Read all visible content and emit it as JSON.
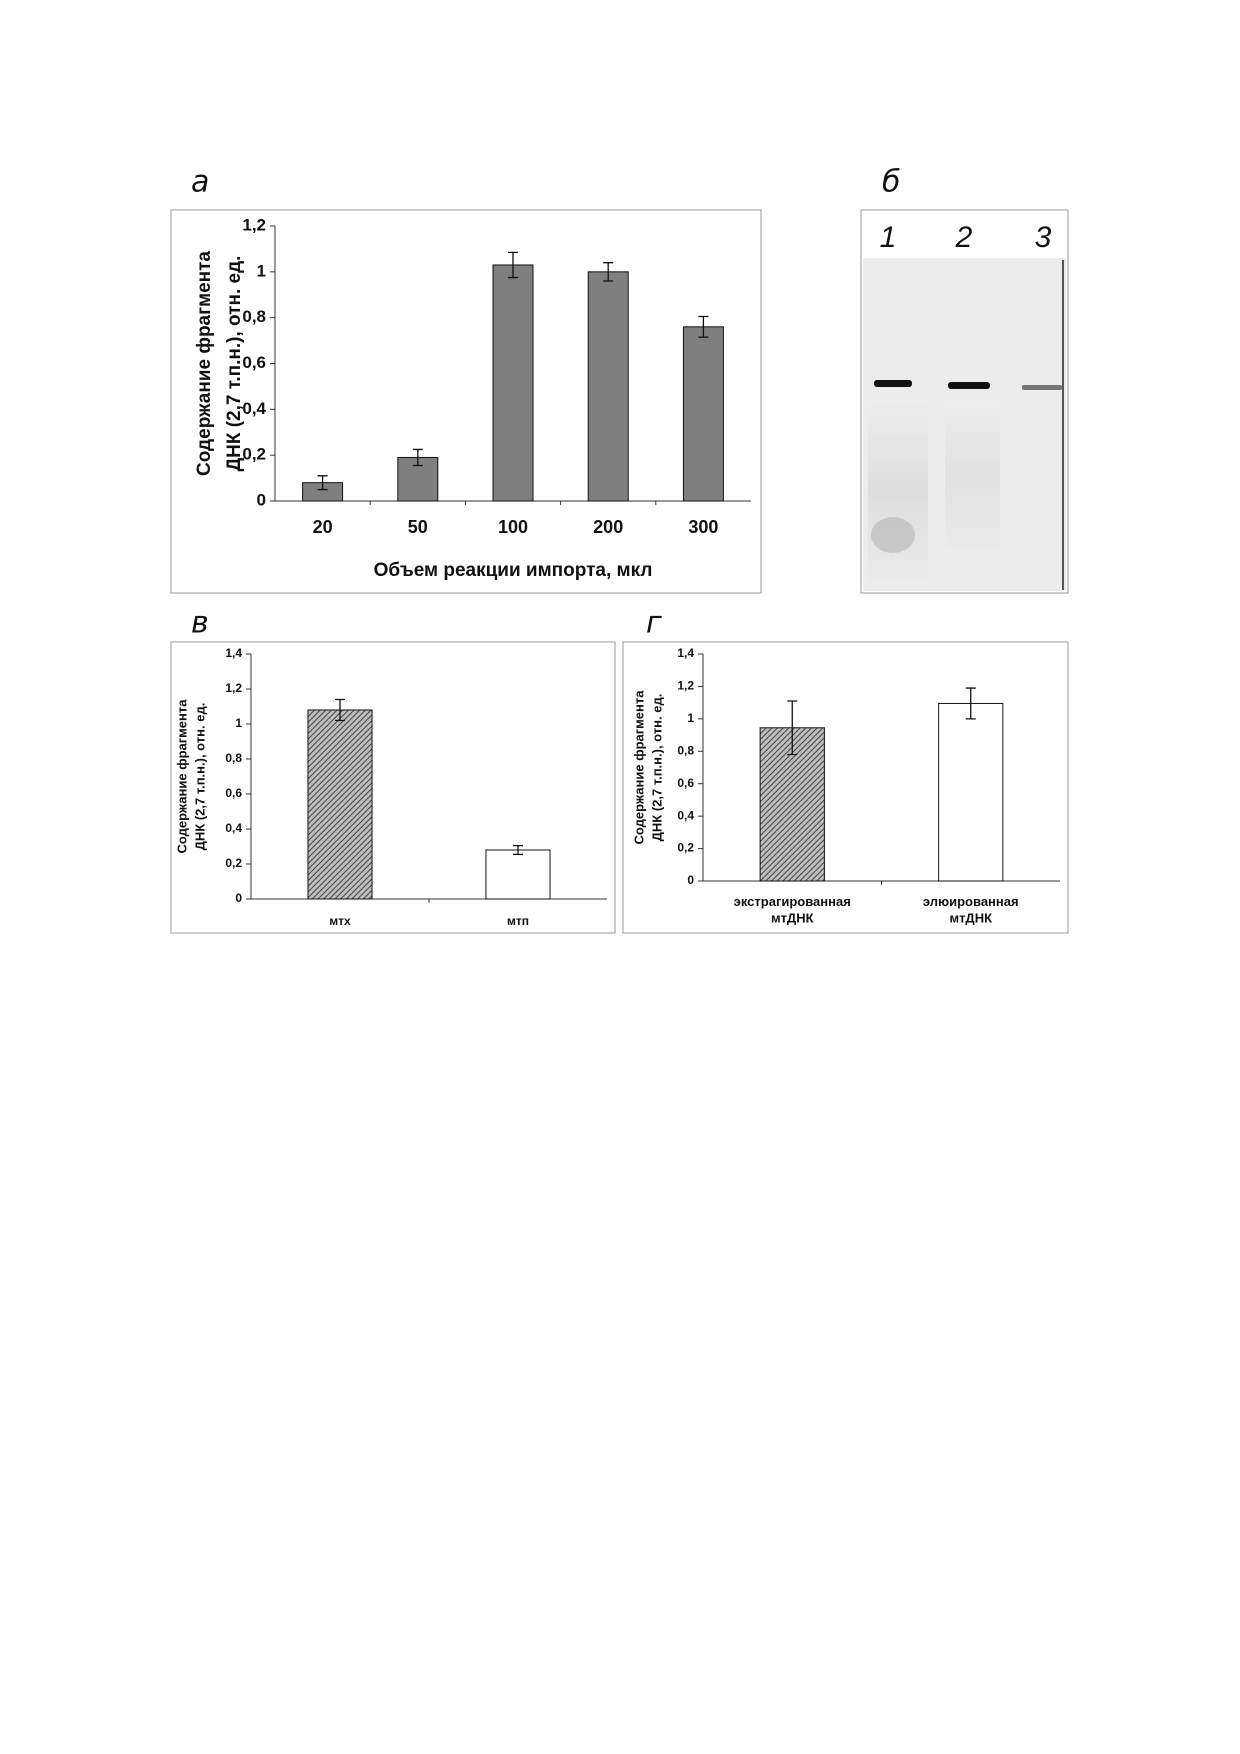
{
  "chart_data": [
    {
      "type": "bar",
      "panel_label": "а",
      "ylabel": [
        "Содержание фрагмента",
        "ДНК (2,7 т.п.н.), отн. ед."
      ],
      "xlabel": "Объем реакции импорта, мкл",
      "categories": [
        "20",
        "50",
        "100",
        "200",
        "300"
      ],
      "values": [
        0.08,
        0.19,
        1.03,
        1.0,
        0.76
      ],
      "errors": [
        0.03,
        0.035,
        0.055,
        0.04,
        0.045
      ],
      "bar_styles": [
        "#7f7f7f",
        "#7f7f7f",
        "#7f7f7f",
        "#7f7f7f",
        "#7f7f7f"
      ],
      "ylim": [
        0,
        1.2
      ],
      "yticks": [
        0,
        {
          "value": 0.2,
          "label": "0,2"
        },
        {
          "value": 0.4,
          "label": "0,4"
        },
        {
          "value": 0.6,
          "label": "0,6"
        },
        {
          "value": 0.8,
          "label": "0,8"
        },
        1,
        {
          "value": 1.2,
          "label": "1,2"
        }
      ]
    },
    {
      "type": "bar",
      "panel_label": "в",
      "ylabel": [
        "Содержание фрагмента",
        "ДНК (2,7 т.п.н.), отн. ед."
      ],
      "categories": [
        "мтх",
        "мтп"
      ],
      "values": [
        1.08,
        0.28
      ],
      "errors": [
        0.06,
        0.025
      ],
      "bar_styles": [
        "hatched",
        "#ffffff"
      ],
      "ylim": [
        0,
        1.4
      ],
      "yticks": [
        0,
        {
          "value": 0.2,
          "label": "0,2"
        },
        {
          "value": 0.4,
          "label": "0,4"
        },
        {
          "value": 0.6,
          "label": "0,6"
        },
        {
          "value": 0.8,
          "label": "0,8"
        },
        1,
        {
          "value": 1.2,
          "label": "1,2"
        },
        {
          "value": 1.4,
          "label": "1,4"
        }
      ]
    },
    {
      "type": "bar",
      "panel_label": "г",
      "ylabel": [
        "Содержание фрагмента",
        "ДНК (2,7 т.п.н.), отн. ед."
      ],
      "categories": [
        "экстрагированная мтДНК",
        "элюированная мтДНК"
      ],
      "values": [
        0.945,
        1.095
      ],
      "errors": [
        0.165,
        0.095
      ],
      "bar_styles": [
        "hatched",
        "#ffffff"
      ],
      "ylim": [
        0,
        1.4
      ],
      "yticks": [
        0,
        {
          "value": 0.2,
          "label": "0,2"
        },
        {
          "value": 0.4,
          "label": "0,4"
        },
        {
          "value": 0.6,
          "label": "0,6"
        },
        {
          "value": 0.8,
          "label": "0,8"
        },
        1,
        {
          "value": 1.2,
          "label": "1,2"
        },
        {
          "value": 1.4,
          "label": "1,4"
        }
      ]
    }
  ],
  "gel": {
    "panel_label": "б",
    "lanes": [
      "1",
      "2",
      "3"
    ]
  }
}
